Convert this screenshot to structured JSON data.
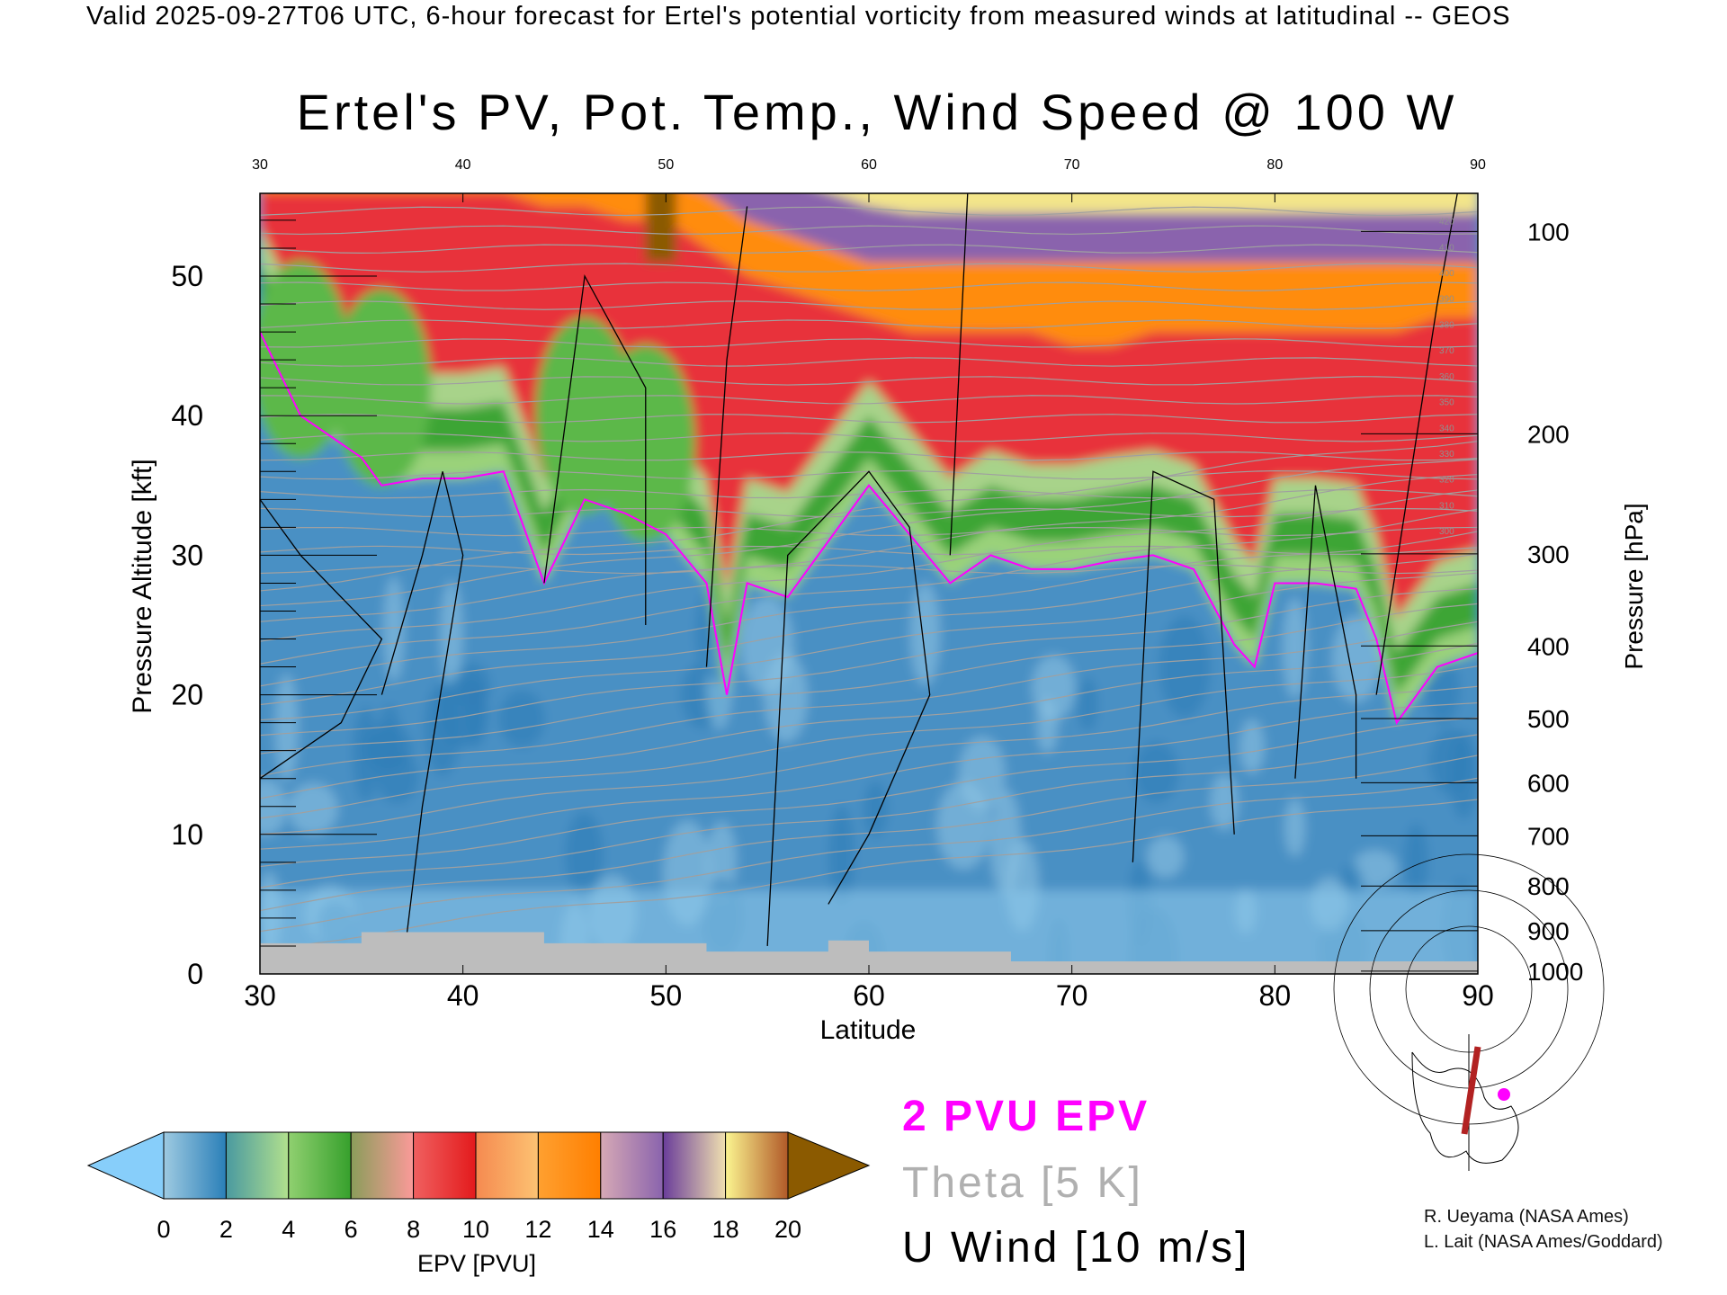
{
  "header": {
    "caption": "Valid 2025-09-27T06 UTC, 6-hour forecast for Ertel's potential vorticity from measured winds at latitudinal -- GEOS",
    "title": "Ertel's PV, Pot. Temp., Wind Speed @ 100 W"
  },
  "chart_data": {
    "type": "heatmap",
    "title": "Ertel's PV, Pot. Temp., Wind Speed @ 100 W",
    "xlabel": "Latitude",
    "ylabel": "Pressure Altitude [kft]",
    "y2label": "Pressure [hPa]",
    "xlim": [
      30,
      90
    ],
    "ylim": [
      0,
      56
    ],
    "x_ticks": [
      "30",
      "40",
      "50",
      "60",
      "70",
      "80",
      "90"
    ],
    "y_ticks": [
      "0",
      "10",
      "20",
      "30",
      "40",
      "50"
    ],
    "y2_ticks": [
      {
        "label": "100",
        "kft": 53.2
      },
      {
        "label": "200",
        "kft": 38.7
      },
      {
        "label": "300",
        "kft": 30.1
      },
      {
        "label": "400",
        "kft": 23.5
      },
      {
        "label": "500",
        "kft": 18.3
      },
      {
        "label": "600",
        "kft": 13.7
      },
      {
        "label": "700",
        "kft": 9.9
      },
      {
        "label": "800",
        "kft": 6.3
      },
      {
        "label": "900",
        "kft": 3.1
      },
      {
        "label": "1000",
        "kft": 0.2
      }
    ],
    "latitudes": [
      30,
      32,
      34,
      35,
      36,
      38,
      40,
      42,
      44,
      46,
      48,
      50,
      52,
      53,
      54,
      56,
      58,
      60,
      62,
      64,
      66,
      68,
      70,
      72,
      74,
      76,
      78,
      79,
      80,
      82,
      84,
      85,
      86,
      88,
      90
    ],
    "pvu2_height_kft": [
      46,
      40,
      38,
      37,
      35,
      35.5,
      35.5,
      36,
      28,
      34,
      33,
      31.5,
      28,
      20,
      28,
      27,
      31,
      35,
      31.5,
      28,
      30,
      29,
      29,
      29.6,
      30,
      29,
      23.6,
      22,
      28,
      28,
      27.6,
      24,
      18,
      22,
      23
    ],
    "orange_base_kft": [
      56,
      56,
      56,
      56,
      56,
      56,
      56,
      56,
      55,
      55,
      54,
      54,
      52,
      51,
      50,
      49,
      48,
      47,
      46,
      46,
      46,
      46,
      45,
      45,
      46,
      46,
      46,
      46,
      46,
      46,
      46,
      46,
      46,
      47,
      47
    ],
    "purple_base_kft": [
      57,
      57,
      57,
      57,
      57,
      57,
      57,
      57,
      57,
      57,
      57,
      57,
      56,
      55,
      54,
      53,
      52,
      51,
      51,
      51,
      51,
      51,
      51,
      51,
      51,
      51,
      51,
      51,
      51,
      51,
      51,
      51,
      51,
      51,
      51
    ],
    "yellow_base_kft": [
      57,
      57,
      57,
      57,
      57,
      57,
      57,
      57,
      57,
      57,
      57,
      57,
      57,
      57,
      57,
      57,
      56,
      55,
      54.5,
      54.5,
      54.5,
      54.5,
      54.5,
      54.5,
      54.5,
      54.5,
      54.5,
      54.5,
      54.5,
      54.5,
      54.5,
      54.5,
      54.5,
      54.5,
      54.5
    ],
    "theta_labels": [
      "300",
      "310",
      "320",
      "330",
      "340",
      "350",
      "360",
      "370",
      "380",
      "390",
      "400",
      "410",
      "420"
    ],
    "colorbar": {
      "label": "EPV [PVU]",
      "ticks": [
        "0",
        "2",
        "4",
        "6",
        "8",
        "10",
        "12",
        "14",
        "16",
        "18",
        "20"
      ],
      "segments": [
        [
          "#9ecae1",
          "#2a7fb8"
        ],
        [
          "#4a9aa0",
          "#b2e08d"
        ],
        [
          "#90d070",
          "#36a02c"
        ],
        [
          "#8a9d5a",
          "#fb9a99"
        ],
        [
          "#f06060",
          "#e31a1c"
        ],
        [
          "#f58a50",
          "#fdc272"
        ],
        [
          "#ffa030",
          "#ff7f00"
        ],
        [
          "#d6a9b5",
          "#8a63ad"
        ],
        [
          "#6a3d9a",
          "#f0e0b0"
        ],
        [
          "#fbf590",
          "#b15928"
        ]
      ],
      "under_color": "#87cefa",
      "over_color": "#8b5a00"
    }
  },
  "legend": {
    "pv_line": "2 PVU EPV",
    "theta": "Theta [5 K]",
    "wind": "U Wind [10 m/s]",
    "pv_color": "#ff00ff",
    "theta_color": "#b0b0b0"
  },
  "credits": {
    "line1": "R. Ueyama (NASA Ames)",
    "line2": "L. Lait (NASA Ames/Goddard)"
  }
}
